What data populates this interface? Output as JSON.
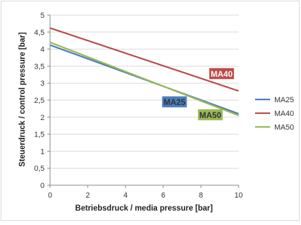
{
  "chart_data": {
    "type": "line",
    "title": "",
    "xlabel": "Betriebsdruck / media pressure [bar]",
    "ylabel": "Steuerdruck  / control pressure [bar]",
    "xlim": [
      0,
      10
    ],
    "ylim": [
      0,
      5
    ],
    "x_ticks": [
      "0",
      "2",
      "4",
      "6",
      "8",
      "10"
    ],
    "y_ticks": [
      "0",
      "0,5",
      "1",
      "1,5",
      "2",
      "2,5",
      "3",
      "3,5",
      "4",
      "4,5",
      "5"
    ],
    "grid": "horizontal",
    "legend_position": "right",
    "series": [
      {
        "name": "MA25",
        "color": "#4a7ebb",
        "x": [
          0,
          10
        ],
        "y": [
          4.12,
          2.1
        ]
      },
      {
        "name": "MA40",
        "color": "#be4b48",
        "x": [
          0,
          10
        ],
        "y": [
          4.62,
          2.77
        ]
      },
      {
        "name": "MA50",
        "color": "#98b954",
        "x": [
          0,
          10
        ],
        "y": [
          4.2,
          2.05
        ]
      }
    ],
    "annotations": [
      {
        "text": "MA40",
        "series": "MA40",
        "x": 9.1,
        "y": 3.28,
        "fill": "#be4b48",
        "text_color": "#ffffff"
      },
      {
        "text": "MA25",
        "series": "MA25",
        "x": 6.6,
        "y": 2.45,
        "fill": "#4a7ebb",
        "text_color": "#333333"
      },
      {
        "text": "MA50",
        "series": "MA50",
        "x": 8.5,
        "y": 2.07,
        "fill": "#98b954",
        "text_color": "#333333"
      }
    ]
  }
}
